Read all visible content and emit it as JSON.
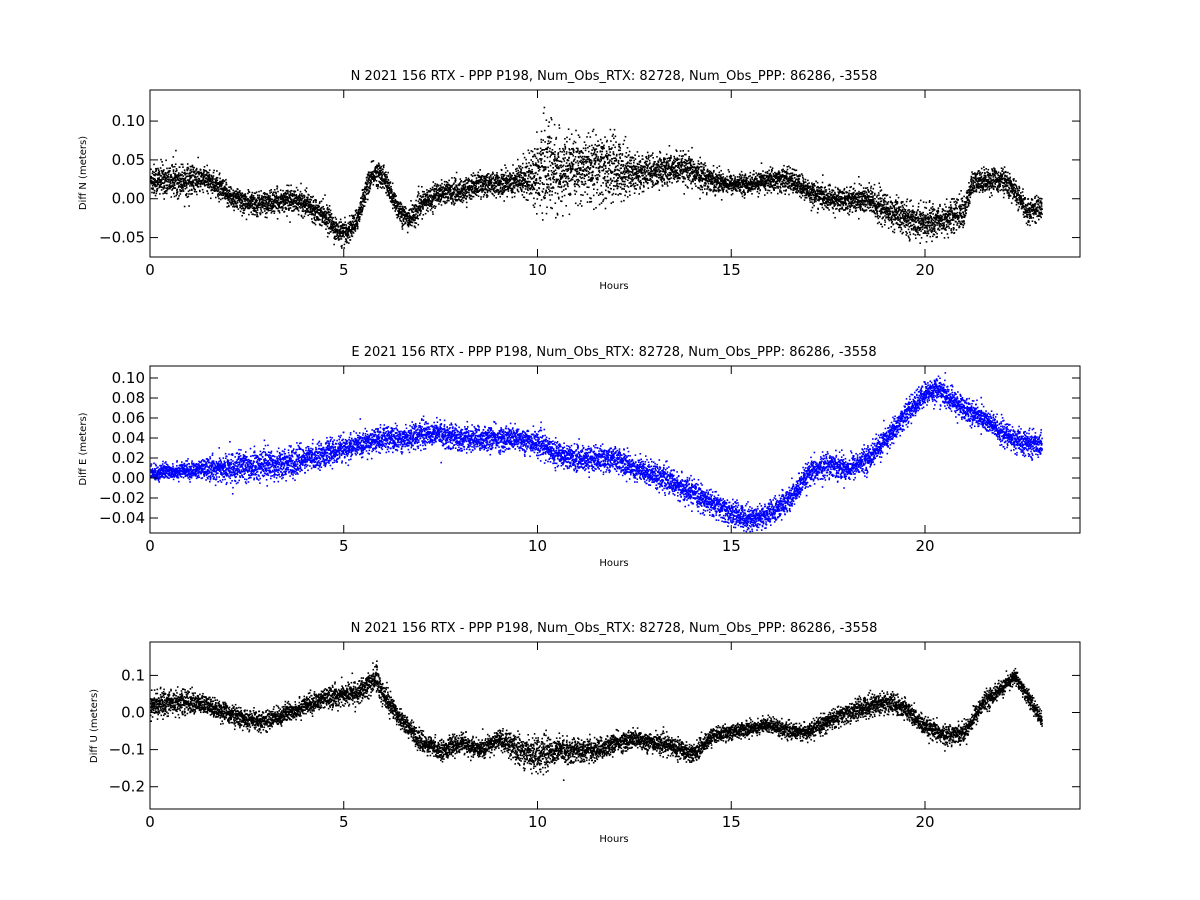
{
  "chart_data": [
    {
      "type": "scatter",
      "title": "N 2021 156 RTX - PPP  P198, Num_Obs_RTX: 82728, Num_Obs_PPP: 86286, -3558",
      "xlabel": "Hours",
      "ylabel": "Diff N (meters)",
      "xlim": [
        0,
        24
      ],
      "ylim": [
        -0.075,
        0.14
      ],
      "xticks": [
        0,
        5,
        10,
        15,
        20
      ],
      "yticks": [
        -0.05,
        0.0,
        0.05,
        0.1
      ],
      "ytick_labels": [
        "−0.05",
        "0.00",
        "0.05",
        "0.10"
      ],
      "grid": false,
      "legend": "none",
      "color": "#000000",
      "series": [
        {
          "x": [
            0,
            0.5,
            1.0,
            1.5,
            2.0,
            2.5,
            3.0,
            3.5,
            4.0,
            4.5,
            4.8,
            5.0,
            5.3,
            5.6,
            5.8,
            6.0,
            6.3,
            6.6,
            6.8,
            7.0,
            7.5,
            8.0,
            8.5,
            9.0,
            9.5,
            10.0,
            10.3,
            10.6,
            11.0,
            11.5,
            12.0,
            12.5,
            13.0,
            13.5,
            14.0,
            14.5,
            15.0,
            15.5,
            16.0,
            16.5,
            17.0,
            17.5,
            18.0,
            18.5,
            19.0,
            19.5,
            20.0,
            20.5,
            21.0,
            21.2,
            21.5,
            22.0,
            22.3,
            22.6,
            23.0
          ],
          "y": [
            0.025,
            0.025,
            0.025,
            0.025,
            0.005,
            -0.005,
            -0.005,
            0.0,
            -0.005,
            -0.02,
            -0.04,
            -0.045,
            -0.03,
            0.02,
            0.035,
            0.03,
            -0.005,
            -0.025,
            -0.02,
            -0.005,
            0.01,
            0.01,
            0.02,
            0.02,
            0.025,
            0.035,
            0.04,
            0.035,
            0.04,
            0.04,
            0.04,
            0.035,
            0.035,
            0.04,
            0.035,
            0.025,
            0.02,
            0.02,
            0.025,
            0.025,
            0.01,
            0.0,
            0.0,
            0.0,
            -0.015,
            -0.025,
            -0.03,
            -0.025,
            -0.015,
            0.02,
            0.025,
            0.025,
            0.01,
            -0.015,
            -0.01
          ],
          "spread": [
            0.02,
            0.02,
            0.02,
            0.015,
            0.015,
            0.015,
            0.015,
            0.015,
            0.015,
            0.015,
            0.015,
            0.015,
            0.015,
            0.015,
            0.015,
            0.015,
            0.015,
            0.015,
            0.015,
            0.015,
            0.015,
            0.015,
            0.015,
            0.015,
            0.02,
            0.04,
            0.06,
            0.04,
            0.035,
            0.045,
            0.04,
            0.025,
            0.02,
            0.02,
            0.02,
            0.015,
            0.012,
            0.012,
            0.015,
            0.015,
            0.015,
            0.015,
            0.015,
            0.02,
            0.02,
            0.02,
            0.02,
            0.02,
            0.02,
            0.015,
            0.015,
            0.015,
            0.015,
            0.015,
            0.015
          ]
        }
      ]
    },
    {
      "type": "scatter",
      "title": "E 2021 156 RTX - PPP  P198, Num_Obs_RTX: 82728, Num_Obs_PPP: 86286, -3558",
      "xlabel": "Hours",
      "ylabel": "Diff E (meters)",
      "xlim": [
        0,
        24
      ],
      "ylim": [
        -0.055,
        0.112
      ],
      "xticks": [
        0,
        5,
        10,
        15,
        20
      ],
      "yticks": [
        -0.04,
        -0.02,
        0.0,
        0.02,
        0.04,
        0.06,
        0.08,
        0.1
      ],
      "ytick_labels": [
        "−0.04",
        "−0.02",
        "0.00",
        "0.02",
        "0.04",
        "0.06",
        "0.08",
        "0.10"
      ],
      "grid": false,
      "legend": "none",
      "color": "#0000ff",
      "series": [
        {
          "x": [
            0,
            0.5,
            1.0,
            1.5,
            2.0,
            2.5,
            3.0,
            3.5,
            4.0,
            4.5,
            5.0,
            5.5,
            6.0,
            6.5,
            7.0,
            7.5,
            8.0,
            8.5,
            9.0,
            9.5,
            10.0,
            10.5,
            11.0,
            11.5,
            12.0,
            12.5,
            13.0,
            13.5,
            14.0,
            14.5,
            15.0,
            15.5,
            16.0,
            16.5,
            17.0,
            17.5,
            18.0,
            18.5,
            19.0,
            19.5,
            20.0,
            20.3,
            20.6,
            21.0,
            21.5,
            22.0,
            22.5,
            23.0
          ],
          "y": [
            0.005,
            0.008,
            0.008,
            0.01,
            0.01,
            0.012,
            0.015,
            0.015,
            0.02,
            0.025,
            0.03,
            0.035,
            0.04,
            0.04,
            0.045,
            0.045,
            0.04,
            0.04,
            0.04,
            0.04,
            0.035,
            0.025,
            0.02,
            0.02,
            0.02,
            0.01,
            0.005,
            -0.005,
            -0.015,
            -0.025,
            -0.035,
            -0.04,
            -0.035,
            -0.02,
            0.005,
            0.015,
            0.01,
            0.02,
            0.04,
            0.065,
            0.085,
            0.09,
            0.08,
            0.07,
            0.06,
            0.045,
            0.035,
            0.035
          ],
          "spread": [
            0.008,
            0.008,
            0.008,
            0.01,
            0.015,
            0.015,
            0.015,
            0.015,
            0.012,
            0.012,
            0.012,
            0.012,
            0.012,
            0.012,
            0.012,
            0.012,
            0.012,
            0.012,
            0.012,
            0.012,
            0.012,
            0.012,
            0.012,
            0.012,
            0.012,
            0.012,
            0.012,
            0.012,
            0.012,
            0.012,
            0.012,
            0.012,
            0.012,
            0.012,
            0.012,
            0.012,
            0.012,
            0.012,
            0.012,
            0.012,
            0.012,
            0.012,
            0.012,
            0.012,
            0.012,
            0.012,
            0.012,
            0.012
          ]
        }
      ]
    },
    {
      "type": "scatter",
      "title": "N 2021 156 RTX - PPP  P198, Num_Obs_RTX: 82728, Num_Obs_PPP: 86286, -3558",
      "xlabel": "Hours",
      "ylabel": "Diff U (meters)",
      "xlim": [
        0,
        24
      ],
      "ylim": [
        -0.26,
        0.19
      ],
      "xticks": [
        0,
        5,
        10,
        15,
        20
      ],
      "yticks": [
        -0.2,
        -0.1,
        0.0,
        0.1
      ],
      "ytick_labels": [
        "−0.2",
        "−0.1",
        "0.0",
        "0.1"
      ],
      "grid": false,
      "legend": "none",
      "color": "#000000",
      "series": [
        {
          "x": [
            0,
            0.5,
            1.0,
            1.5,
            2.0,
            2.5,
            3.0,
            3.5,
            4.0,
            4.5,
            5.0,
            5.5,
            5.8,
            6.0,
            6.5,
            7.0,
            7.5,
            8.0,
            8.5,
            9.0,
            9.5,
            10.0,
            10.5,
            11.0,
            11.5,
            12.0,
            12.5,
            13.0,
            13.5,
            14.0,
            14.5,
            15.0,
            15.5,
            16.0,
            16.5,
            17.0,
            17.5,
            18.0,
            18.5,
            19.0,
            19.5,
            20.0,
            20.5,
            21.0,
            21.5,
            22.0,
            22.3,
            22.6,
            23.0
          ],
          "y": [
            0.02,
            0.03,
            0.03,
            0.02,
            0.0,
            -0.02,
            -0.02,
            0.0,
            0.02,
            0.04,
            0.05,
            0.06,
            0.1,
            0.05,
            -0.02,
            -0.08,
            -0.1,
            -0.08,
            -0.1,
            -0.07,
            -0.1,
            -0.11,
            -0.1,
            -0.1,
            -0.1,
            -0.08,
            -0.07,
            -0.08,
            -0.09,
            -0.11,
            -0.06,
            -0.05,
            -0.04,
            -0.03,
            -0.05,
            -0.05,
            -0.02,
            0.0,
            0.02,
            0.03,
            0.01,
            -0.04,
            -0.06,
            -0.05,
            0.03,
            0.07,
            0.1,
            0.05,
            -0.02
          ],
          "spread": [
            0.03,
            0.035,
            0.03,
            0.025,
            0.025,
            0.025,
            0.025,
            0.025,
            0.025,
            0.025,
            0.03,
            0.03,
            0.04,
            0.03,
            0.025,
            0.025,
            0.025,
            0.025,
            0.025,
            0.025,
            0.04,
            0.045,
            0.035,
            0.03,
            0.03,
            0.025,
            0.025,
            0.025,
            0.025,
            0.025,
            0.02,
            0.02,
            0.02,
            0.02,
            0.02,
            0.02,
            0.025,
            0.025,
            0.03,
            0.03,
            0.025,
            0.025,
            0.025,
            0.025,
            0.025,
            0.02,
            0.02,
            0.02,
            0.02
          ]
        }
      ]
    }
  ]
}
